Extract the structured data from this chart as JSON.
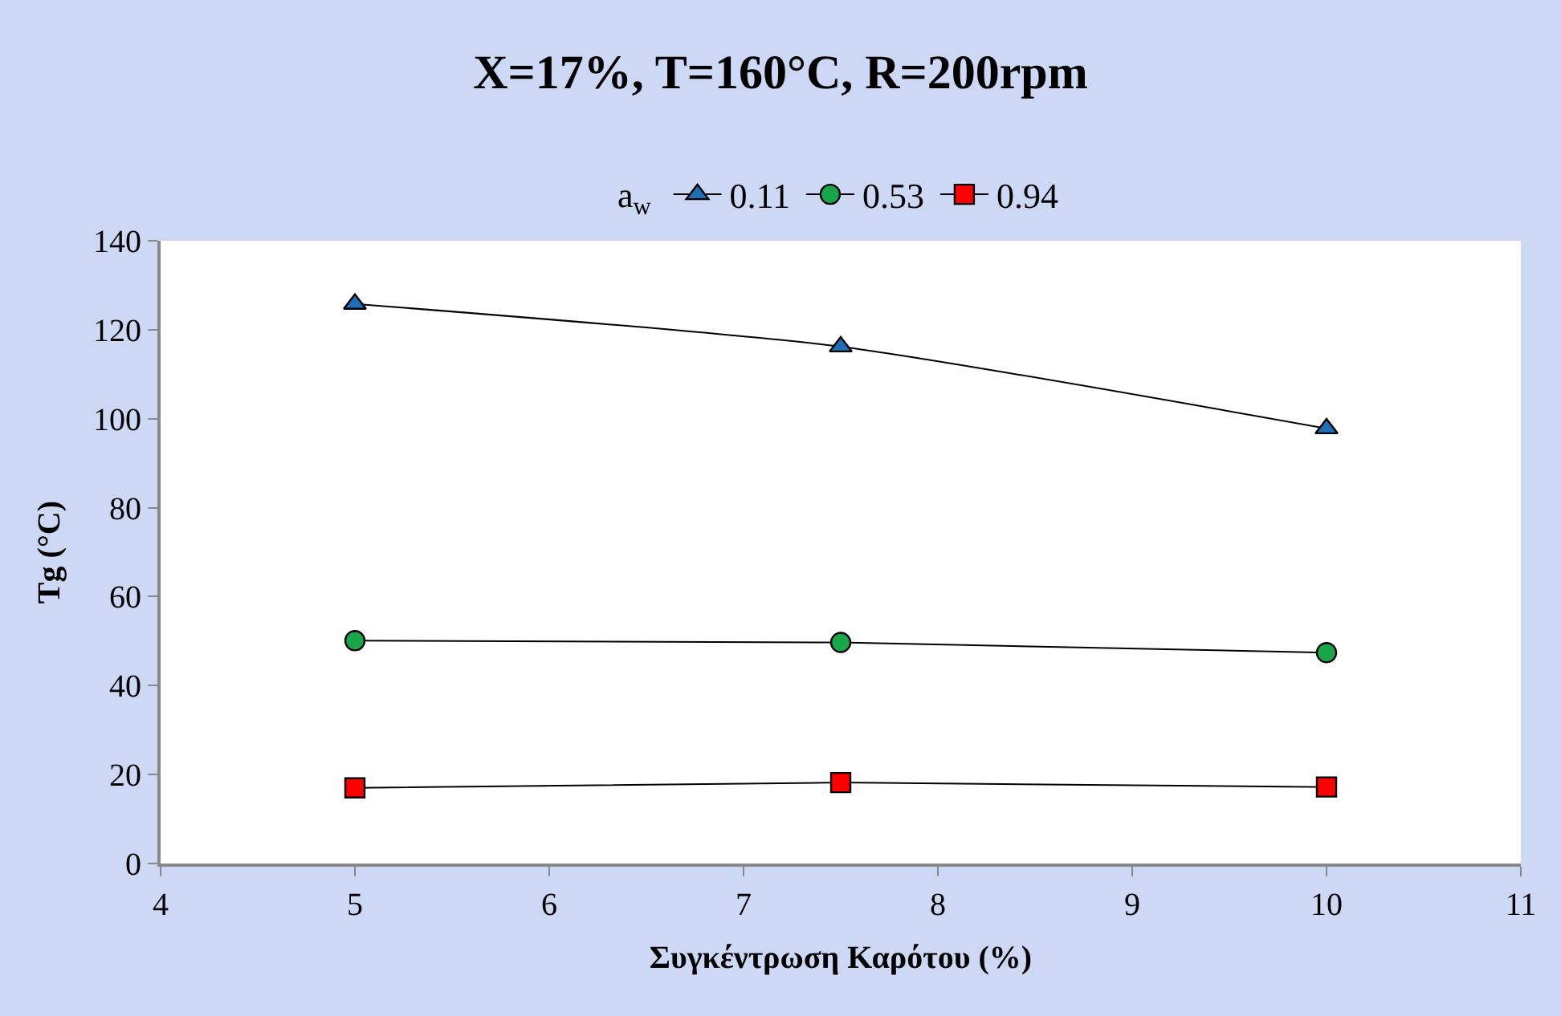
{
  "chart_data": {
    "type": "line",
    "title": "X=17%, T=160°C, R=200rpm",
    "xlabel": "Συγκέντρωση Καρότου (%)",
    "ylabel": "Tg (°C)",
    "legend_title": "a$_{w}$",
    "legend": "top",
    "x": [
      5,
      7.5,
      10
    ],
    "xlim": [
      4,
      11
    ],
    "xticks": [
      4,
      5,
      6,
      7,
      8,
      9,
      10,
      11
    ],
    "ylim": [
      0,
      140
    ],
    "yticks": [
      0,
      20,
      40,
      60,
      80,
      100,
      120,
      140
    ],
    "series": [
      {
        "name": "0.11",
        "color": "#1f6fb8",
        "marker": "triangle",
        "values": [
          125.8,
          116.2,
          97.8
        ]
      },
      {
        "name": "0.53",
        "color": "#19a64a",
        "marker": "circle",
        "values": [
          50.1,
          49.7,
          47.4
        ]
      },
      {
        "name": "0.94",
        "color": "#ff0000",
        "marker": "square",
        "values": [
          17.0,
          18.2,
          17.2
        ]
      }
    ]
  }
}
